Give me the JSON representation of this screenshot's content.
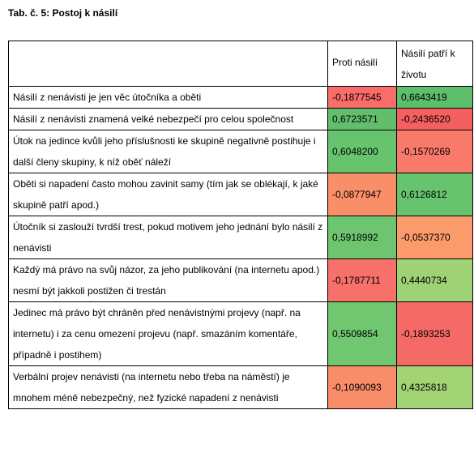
{
  "caption": "Tab. č. 5: Postoj k násilí",
  "table": {
    "headers": [
      "",
      "Proti násilí",
      "Násilí patří k životu"
    ],
    "rows": [
      {
        "label": "Násilí z nenávisti je jen věc útočníka a oběti",
        "v1": "-0,1877545",
        "v2": "0,6643419",
        "c1": "#f86d6a",
        "c2": "#5dbf6b"
      },
      {
        "label": "Násilí z nenávisti znamená velké nebezpečí pro celou společnost",
        "v1": "0,6723571",
        "v2": "-0,2436520",
        "c1": "#62be6c",
        "c2": "#f3605f"
      },
      {
        "label": "Útok na jedince kvůli jeho příslušnosti ke skupině negativně postihuje i další členy skupiny, k níž oběť náleží",
        "v1": "0,6048200",
        "v2": "-0,1570269",
        "c1": "#67c36e",
        "c2": "#f97a6a"
      },
      {
        "label": "Oběti si napadení často mohou zavinit samy (tím jak se oblékají, k jaké skupině patří apod.)",
        "v1": "-0,0877947",
        "v2": "0,6126812",
        "c1": "#f98f68",
        "c2": "#66c36e"
      },
      {
        "label": "Útočník si zaslouží tvrdší trest, pokud motivem jeho jednání bylo násilí z nenávisti",
        "v1": "0,5918992",
        "v2": "-0,0537370",
        "c1": "#6dc66f",
        "c2": "#fb9b6b"
      },
      {
        "label": "Každý má právo na svůj názor, za jeho publikování (na internetu apod.) nesmí být jakkoli postižen či trestán",
        "v1": "-0,1787711",
        "v2": "0,4440734",
        "c1": "#f7716a",
        "c2": "#9fd274"
      },
      {
        "label": "Jedinec má právo být chráněn před nenávistnými projevy (např. na internetu) i za cenu omezení projevu (např. smazáním komentáře, případně i postihem)",
        "v1": "0,5509854",
        "v2": "-0,1893253",
        "c1": "#71c670",
        "c2": "#f56a67"
      },
      {
        "label": "Verbální projev nenávisti (na internetu nebo třeba na náměstí) je mnohem méně nebezpečný, než fyzické napadení z nenávisti",
        "v1": "-0,1090093",
        "v2": "0,4325818",
        "c1": "#f98d69",
        "c2": "#a3d474"
      }
    ]
  }
}
